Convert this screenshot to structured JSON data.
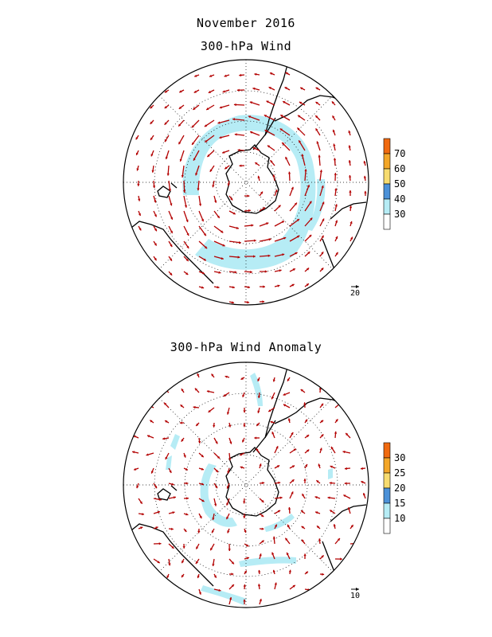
{
  "titles": {
    "month": "November 2016",
    "panel1": "300-hPa Wind",
    "panel2": "300-hPa Wind Anomaly"
  },
  "panel1": {
    "colorbar_ticks": [
      "70",
      "60",
      "50",
      "40",
      "30"
    ],
    "colorbar_colors": [
      "#f06a10",
      "#f3a628",
      "#f7dc70",
      "#4c91d8",
      "#b6ecf5"
    ],
    "reference_vector_label": "20",
    "arrow_color": "#b30000"
  },
  "panel2": {
    "colorbar_ticks": [
      "30",
      "25",
      "20",
      "15",
      "10"
    ],
    "colorbar_colors": [
      "#f06a10",
      "#f3a628",
      "#f7dc70",
      "#4c91d8",
      "#b6ecf5"
    ],
    "reference_vector_label": "10",
    "arrow_color": "#b30000"
  }
}
